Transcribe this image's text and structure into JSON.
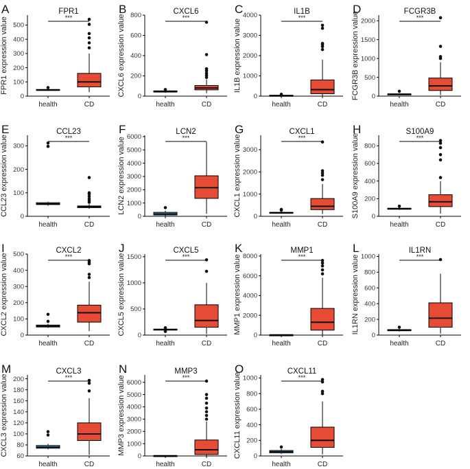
{
  "figure": {
    "categories": [
      "health",
      "CD"
    ],
    "significance": "***"
  },
  "colors": {
    "health": "#56B4E9",
    "cd": "#E64B35",
    "line": "#000000",
    "outlier": "#111111"
  },
  "chart_data": [
    {
      "type": "boxplot",
      "letter": "A",
      "title": "FPR1",
      "ylabel": "FPR1 expression value",
      "ylim": [
        0,
        570
      ],
      "yticks": [
        0,
        100,
        200,
        300,
        400,
        500
      ],
      "categories": [
        "health",
        "CD"
      ],
      "series": [
        {
          "name": "health",
          "q1": 40,
          "median": 44,
          "q3": 47,
          "whislo": 36,
          "whishi": 52,
          "outliers": [
            60
          ]
        },
        {
          "name": "CD",
          "q1": 65,
          "median": 100,
          "q3": 160,
          "whislo": 28,
          "whishi": 300,
          "outliers": [
            340,
            375,
            410,
            440,
            505,
            540
          ]
        }
      ]
    },
    {
      "type": "boxplot",
      "letter": "B",
      "title": "CXCL6",
      "ylabel": "CXCL6 expression value",
      "ylim": [
        0,
        800
      ],
      "yticks": [
        0,
        200,
        400,
        600,
        800
      ],
      "categories": [
        "health",
        "CD"
      ],
      "series": [
        {
          "name": "health",
          "q1": 40,
          "median": 46,
          "q3": 52,
          "whislo": 35,
          "whishi": 58,
          "outliers": [
            65
          ]
        },
        {
          "name": "CD",
          "q1": 62,
          "median": 80,
          "q3": 105,
          "whislo": 30,
          "whishi": 165,
          "outliers": [
            185,
            205,
            225,
            250,
            270,
            410,
            730
          ]
        }
      ]
    },
    {
      "type": "boxplot",
      "letter": "C",
      "title": "IL1B",
      "ylabel": "IL1B expression value",
      "ylim": [
        0,
        4000
      ],
      "yticks": [
        0,
        1000,
        2000,
        3000,
        4000
      ],
      "categories": [
        "health",
        "CD"
      ],
      "series": [
        {
          "name": "health",
          "q1": 20,
          "median": 30,
          "q3": 42,
          "whislo": 10,
          "whishi": 60,
          "outliers": [
            90
          ]
        },
        {
          "name": "CD",
          "q1": 120,
          "median": 320,
          "q3": 800,
          "whislo": 20,
          "whishi": 1800,
          "outliers": [
            2300,
            2450,
            2550,
            2600,
            3350,
            3500
          ]
        }
      ]
    },
    {
      "type": "boxplot",
      "letter": "D",
      "title": "FCGR3B",
      "ylabel": "FCGR3B expression value",
      "ylim": [
        0,
        2150
      ],
      "yticks": [
        0,
        500,
        1000,
        1500,
        2000
      ],
      "categories": [
        "health",
        "CD"
      ],
      "series": [
        {
          "name": "health",
          "q1": 40,
          "median": 52,
          "q3": 60,
          "whislo": 30,
          "whishi": 80,
          "outliers": [
            130
          ]
        },
        {
          "name": "CD",
          "q1": 150,
          "median": 270,
          "q3": 480,
          "whislo": 30,
          "whishi": 900,
          "outliers": [
            1000,
            1050,
            1320,
            2080
          ]
        }
      ]
    },
    {
      "type": "boxplot",
      "letter": "E",
      "title": "CCL23",
      "ylabel": "CCL23 expression value",
      "ylim": [
        0,
        345
      ],
      "yticks": [
        0,
        100,
        200,
        300
      ],
      "categories": [
        "health",
        "CD"
      ],
      "series": [
        {
          "name": "health",
          "q1": 50,
          "median": 53,
          "q3": 58,
          "whislo": 45,
          "whishi": 62,
          "outliers": [
            298,
            312
          ]
        },
        {
          "name": "CD",
          "q1": 37,
          "median": 40,
          "q3": 44,
          "whislo": 32,
          "whishi": 52,
          "outliers": [
            60,
            68,
            75,
            85,
            95,
            100,
            165
          ]
        }
      ]
    },
    {
      "type": "boxplot",
      "letter": "F",
      "title": "LCN2",
      "ylabel": "LCN2 expression value",
      "ylim": [
        0,
        6100
      ],
      "yticks": [
        0,
        1000,
        2000,
        3000,
        4000,
        5000,
        6000
      ],
      "categories": [
        "health",
        "CD"
      ],
      "series": [
        {
          "name": "health",
          "q1": 100,
          "median": 180,
          "q3": 300,
          "whislo": 30,
          "whishi": 420,
          "outliers": [
            650
          ]
        },
        {
          "name": "CD",
          "q1": 1350,
          "median": 2150,
          "q3": 3050,
          "whislo": 200,
          "whishi": 5600,
          "outliers": []
        }
      ]
    },
    {
      "type": "boxplot",
      "letter": "G",
      "title": "CXCL1",
      "ylabel": "CXCL1 expression value",
      "ylim": [
        0,
        3650
      ],
      "yticks": [
        0,
        1000,
        2000,
        3000
      ],
      "categories": [
        "health",
        "CD"
      ],
      "series": [
        {
          "name": "health",
          "q1": 140,
          "median": 160,
          "q3": 180,
          "whislo": 120,
          "whishi": 210,
          "outliers": [
            280,
            310
          ]
        },
        {
          "name": "CD",
          "q1": 300,
          "median": 450,
          "q3": 800,
          "whislo": 100,
          "whishi": 1450,
          "outliers": [
            1650,
            1850,
            1950,
            2050,
            3350
          ]
        }
      ]
    },
    {
      "type": "boxplot",
      "letter": "H",
      "title": "S100A9",
      "ylabel": "S100A9 expression value",
      "ylim": [
        0,
        920
      ],
      "yticks": [
        0,
        200,
        400,
        600,
        800
      ],
      "categories": [
        "health",
        "CD"
      ],
      "series": [
        {
          "name": "health",
          "q1": 80,
          "median": 86,
          "q3": 92,
          "whislo": 72,
          "whishi": 100,
          "outliers": [
            115
          ]
        },
        {
          "name": "CD",
          "q1": 110,
          "median": 165,
          "q3": 245,
          "whislo": 30,
          "whishi": 400,
          "outliers": [
            440,
            640,
            700,
            780,
            830,
            860
          ]
        }
      ]
    },
    {
      "type": "boxplot",
      "letter": "I",
      "title": "CXCL2",
      "ylabel": "CXCL2 expression value",
      "ylim": [
        0,
        500
      ],
      "yticks": [
        0,
        100,
        200,
        300,
        400,
        500
      ],
      "categories": [
        "health",
        "CD"
      ],
      "series": [
        {
          "name": "health",
          "q1": 50,
          "median": 55,
          "q3": 62,
          "whislo": 45,
          "whishi": 70,
          "outliers": [
            85,
            128
          ]
        },
        {
          "name": "CD",
          "q1": 80,
          "median": 138,
          "q3": 185,
          "whislo": 25,
          "whishi": 330,
          "outliers": [
            355,
            375,
            440,
            450,
            460
          ]
        }
      ]
    },
    {
      "type": "boxplot",
      "letter": "J",
      "title": "CXCL5",
      "ylabel": "CXCL5 expression value",
      "ylim": [
        0,
        1550
      ],
      "yticks": [
        0,
        500,
        1000,
        1500
      ],
      "categories": [
        "health",
        "CD"
      ],
      "series": [
        {
          "name": "health",
          "q1": 95,
          "median": 105,
          "q3": 115,
          "whislo": 85,
          "whishi": 125,
          "outliers": [
            70,
            140
          ]
        },
        {
          "name": "CD",
          "q1": 150,
          "median": 280,
          "q3": 580,
          "whislo": 20,
          "whishi": 1000,
          "outliers": [
            1220,
            1440
          ]
        }
      ]
    },
    {
      "type": "boxplot",
      "letter": "K",
      "title": "MMP1",
      "ylabel": "MMP1 expression value",
      "ylim": [
        0,
        8200
      ],
      "yticks": [
        0,
        2000,
        4000,
        6000,
        8000
      ],
      "categories": [
        "health",
        "CD"
      ],
      "series": [
        {
          "name": "health",
          "q1": 10,
          "median": 20,
          "q3": 30,
          "whislo": 5,
          "whishi": 45,
          "outliers": []
        },
        {
          "name": "CD",
          "q1": 500,
          "median": 1300,
          "q3": 2700,
          "whislo": 20,
          "whishi": 5800,
          "outliers": [
            6200,
            6600,
            7000,
            7300,
            7550
          ]
        }
      ]
    },
    {
      "type": "boxplot",
      "letter": "L",
      "title": "IL1RN",
      "ylabel": "IL1RN expression value",
      "ylim": [
        0,
        1030
      ],
      "yticks": [
        0,
        200,
        400,
        600,
        800,
        1000
      ],
      "categories": [
        "health",
        "CD"
      ],
      "series": [
        {
          "name": "health",
          "q1": 55,
          "median": 62,
          "q3": 70,
          "whislo": 45,
          "whishi": 80,
          "outliers": [
            100
          ]
        },
        {
          "name": "CD",
          "q1": 100,
          "median": 215,
          "q3": 410,
          "whislo": 20,
          "whishi": 780,
          "outliers": [
            960
          ]
        }
      ]
    },
    {
      "type": "boxplot",
      "letter": "M",
      "title": "CXCL3",
      "ylabel": "CXCL3 expression value",
      "ylim": [
        60,
        207
      ],
      "yticks": [
        60,
        80,
        100,
        120,
        140,
        160,
        180,
        200
      ],
      "categories": [
        "health",
        "CD"
      ],
      "series": [
        {
          "name": "health",
          "q1": 74,
          "median": 76,
          "q3": 79,
          "whislo": 72,
          "whishi": 82,
          "outliers": [
            98,
            104
          ]
        },
        {
          "name": "CD",
          "q1": 88,
          "median": 100,
          "q3": 120,
          "whislo": 62,
          "whishi": 165,
          "outliers": [
            178,
            192,
            197
          ]
        }
      ]
    },
    {
      "type": "boxplot",
      "letter": "N",
      "title": "MMP3",
      "ylabel": "MMP3 expression value",
      "ylim": [
        0,
        6600
      ],
      "yticks": [
        0,
        1000,
        2000,
        3000,
        4000,
        5000,
        6000
      ],
      "categories": [
        "health",
        "CD"
      ],
      "series": [
        {
          "name": "health",
          "q1": 10,
          "median": 20,
          "q3": 30,
          "whislo": 5,
          "whishi": 45,
          "outliers": []
        },
        {
          "name": "CD",
          "q1": 120,
          "median": 500,
          "q3": 1300,
          "whislo": 10,
          "whishi": 2800,
          "outliers": [
            3000,
            3300,
            3600,
            3900,
            4300,
            4700,
            5000,
            6100
          ]
        }
      ]
    },
    {
      "type": "boxplot",
      "letter": "O",
      "title": "CXCL11",
      "ylabel": "CXCL11 expression value",
      "ylim": [
        0,
        1040
      ],
      "yticks": [
        0,
        200,
        400,
        600,
        800,
        1000
      ],
      "categories": [
        "health",
        "CD"
      ],
      "series": [
        {
          "name": "health",
          "q1": 40,
          "median": 55,
          "q3": 70,
          "whislo": 25,
          "whishi": 90,
          "outliers": [
            115
          ]
        },
        {
          "name": "CD",
          "q1": 110,
          "median": 200,
          "q3": 370,
          "whislo": 20,
          "whishi": 700,
          "outliers": [
            800,
            830,
            950,
            980
          ]
        }
      ]
    }
  ]
}
